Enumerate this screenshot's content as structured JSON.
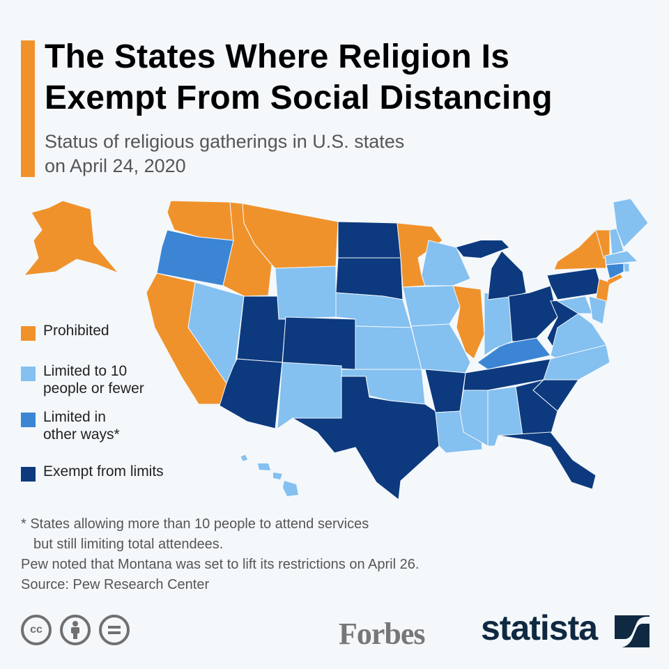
{
  "header": {
    "title_line1": "The States Where Religion Is",
    "title_line2": "Exempt From Social Distancing",
    "subtitle_line1": "Status of religious gatherings in U.S. states",
    "subtitle_line2": "on April 24, 2020"
  },
  "colors": {
    "accent": "#f0922b",
    "prohibited": "#f0922b",
    "limited10": "#84c0f0",
    "limited_other": "#3b85d4",
    "exempt": "#0d3a7e"
  },
  "legend": {
    "items": [
      {
        "key": "prohibited",
        "line1": "Prohibited",
        "line2": ""
      },
      {
        "key": "limited10",
        "line1": "Limited to 10",
        "line2": "people or fewer"
      },
      {
        "key": "limited_other",
        "line1": "Limited in",
        "line2": "other ways*"
      },
      {
        "key": "exempt",
        "line1": "Exempt from limits",
        "line2": ""
      }
    ]
  },
  "states": {
    "AK": "prohibited",
    "WA": "prohibited",
    "OR": "limited_other",
    "CA": "prohibited",
    "NV": "limited10",
    "ID": "prohibited",
    "MT": "prohibited",
    "WY": "limited10",
    "UT": "exempt",
    "CO": "exempt",
    "AZ": "exempt",
    "NM": "limited10",
    "ND": "exempt",
    "SD": "exempt",
    "NE": "limited10",
    "KS": "limited10",
    "OK": "limited10",
    "TX": "exempt",
    "MN": "prohibited",
    "IA": "limited10",
    "MO": "limited10",
    "AR": "exempt",
    "LA": "limited10",
    "WI": "limited10",
    "IL": "prohibited",
    "MS": "limited10",
    "AL": "limited10",
    "TN": "exempt",
    "KY": "limited_other",
    "IN": "limited10",
    "MI": "exempt",
    "OH": "exempt",
    "PA": "exempt",
    "WV": "exempt",
    "VA": "limited10",
    "NC": "limited10",
    "SC": "exempt",
    "GA": "exempt",
    "FL": "exempt",
    "NY": "prohibited",
    "VT": "prohibited",
    "NH": "limited10",
    "ME": "limited10",
    "MA": "limited10",
    "RI": "limited10",
    "CT": "limited_other",
    "NJ": "prohibited",
    "DE": "limited10",
    "MD": "limited10",
    "HI": "limited10"
  },
  "notes": {
    "footnote_line1": "* States allowing more than 10 people to attend services",
    "footnote_line2": "but still limiting total attendees.",
    "montana_note": "Pew noted that Montana was set to lift its restrictions on April 26.",
    "source": "Source: Pew Research Center"
  },
  "footer": {
    "license_icons": [
      "cc-icon",
      "attribution-icon",
      "no-derivatives-icon"
    ],
    "cc_text": "cc",
    "partner": "Forbes",
    "brand": "statista"
  }
}
